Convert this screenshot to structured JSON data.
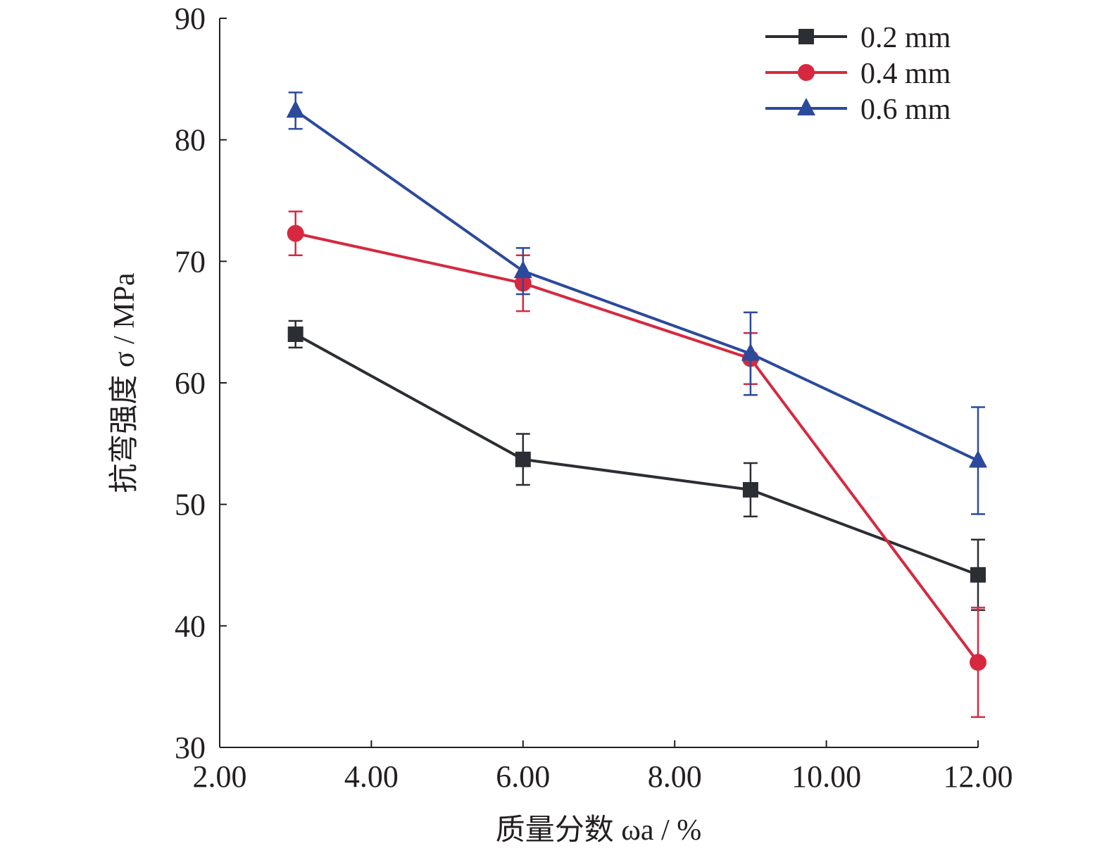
{
  "chart_data": {
    "type": "line",
    "xlabel": "质量分数 ωa / %",
    "ylabel": "抗弯强度 σ / MPa",
    "xlim": [
      2,
      12
    ],
    "ylim": [
      30,
      90
    ],
    "x_ticks": [
      "2.00",
      "4.00",
      "6.00",
      "8.00",
      "10.00",
      "12.00"
    ],
    "x_tick_values": [
      2,
      4,
      6,
      8,
      10,
      12
    ],
    "y_ticks": [
      "30",
      "40",
      "50",
      "60",
      "70",
      "80",
      "90"
    ],
    "y_tick_values": [
      30,
      40,
      50,
      60,
      70,
      80,
      90
    ],
    "legend_position": "top-right",
    "grid": false,
    "x": [
      3,
      6,
      9,
      12
    ],
    "series": [
      {
        "name": "0.2 mm",
        "marker": "square",
        "color": "#2b2e33",
        "values": [
          64.0,
          53.7,
          51.2,
          44.2
        ],
        "errors": [
          1.1,
          2.1,
          2.2,
          2.9
        ]
      },
      {
        "name": "0.4 mm",
        "marker": "circle",
        "color": "#d6293f",
        "values": [
          72.3,
          68.2,
          62.0,
          37.0
        ],
        "errors": [
          1.8,
          2.3,
          2.1,
          4.5
        ]
      },
      {
        "name": "0.6 mm",
        "marker": "triangle",
        "color": "#2b4a9c",
        "values": [
          82.4,
          69.2,
          62.4,
          53.6
        ],
        "errors": [
          1.5,
          1.9,
          3.4,
          4.4
        ]
      }
    ]
  }
}
